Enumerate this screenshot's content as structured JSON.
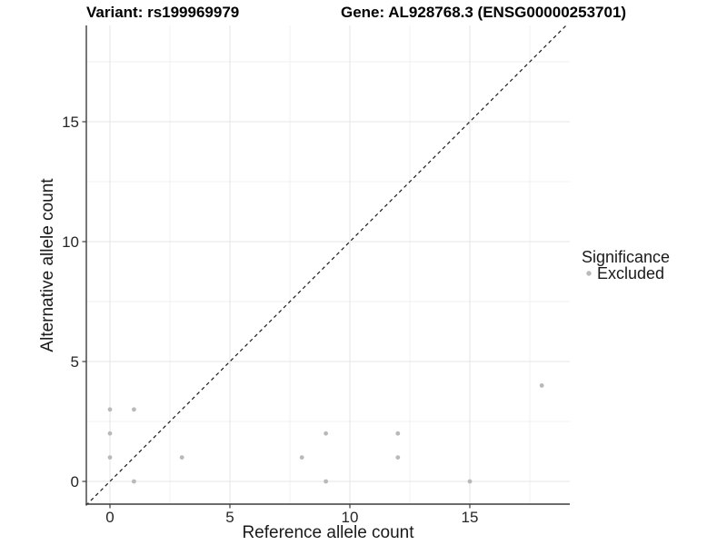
{
  "figure": {
    "title_variant": "Variant: rs199969979",
    "title_gene": "Gene: AL928768.3 (ENSG00000253701)"
  },
  "chart_data": {
    "type": "scatter",
    "title": "Variant: rs199969979 / Gene: AL928768.3 (ENSG00000253701)",
    "xlabel": "Reference allele count",
    "ylabel": "Alternative allele count",
    "xlim": [
      -1,
      19.2
    ],
    "ylim": [
      -1,
      19.0
    ],
    "x_ticks": [
      0,
      5,
      10,
      15
    ],
    "y_ticks": [
      0,
      5,
      10,
      15
    ],
    "x_minor_ticks": [
      2.5,
      7.5,
      12.5,
      17.5
    ],
    "y_minor_ticks": [
      2.5,
      7.5,
      12.5,
      17.5
    ],
    "grid": true,
    "series": [
      {
        "name": "Excluded",
        "color": "#b9b9b9",
        "points": [
          [
            0,
            1
          ],
          [
            0,
            2
          ],
          [
            0,
            3
          ],
          [
            1,
            0
          ],
          [
            1,
            3
          ],
          [
            3,
            1
          ],
          [
            8,
            1
          ],
          [
            9,
            0
          ],
          [
            9,
            2
          ],
          [
            12,
            1
          ],
          [
            12,
            2
          ],
          [
            15,
            0
          ],
          [
            18,
            4
          ]
        ]
      }
    ],
    "reference_line": {
      "type": "identity y=x",
      "style": "dashed",
      "color": "#1a1a1a"
    },
    "legend": {
      "title": "Significance",
      "position": "right",
      "items": [
        {
          "label": "Excluded",
          "color": "#b9b9b9"
        }
      ]
    }
  },
  "colors": {
    "point": "#b9b9b9",
    "grid_major": "#e6e6e6",
    "grid_minor": "#f0f0f0",
    "axis_line": "#3c3c3c",
    "dashed_line": "#1a1a1a",
    "background": "#ffffff"
  }
}
